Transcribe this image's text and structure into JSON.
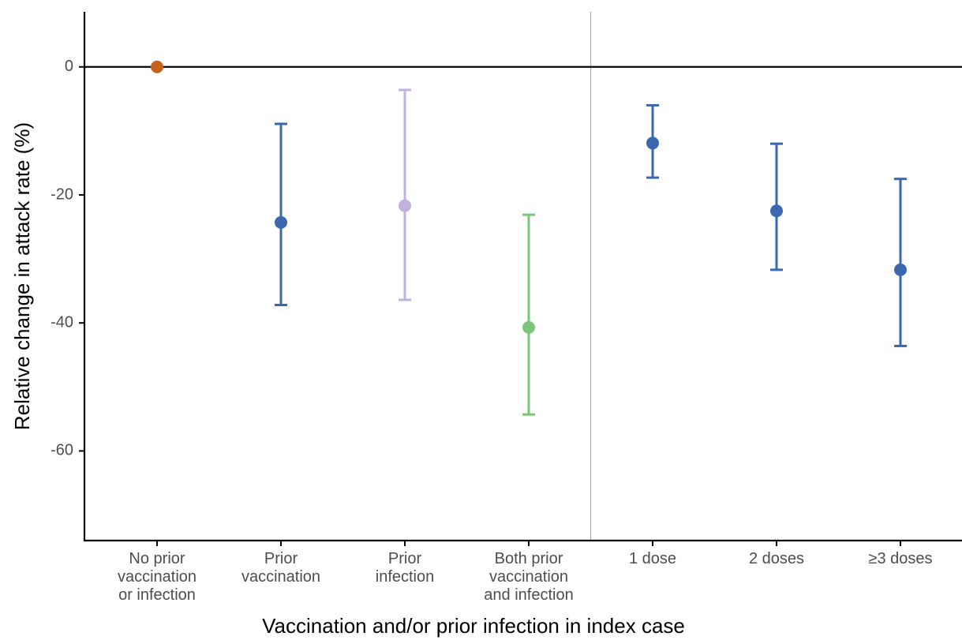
{
  "chart_data": {
    "type": "pointrange",
    "x_label": "Vaccination and/or prior infection in index case",
    "y_label": "Relative change in attack rate (%)",
    "categories": [
      "No prior\nvaccination\nor infection",
      "Prior\nvaccination",
      "Prior\ninfection",
      "Both prior\nvaccination\nand infection",
      "1 dose",
      "2 doses",
      "≥3 doses"
    ],
    "values": [
      0,
      -24.3,
      -21.7,
      -40.7,
      -11.9,
      -22.5,
      -31.7
    ],
    "lower": [
      null,
      -37.2,
      -36.4,
      -54.3,
      -17.3,
      -31.7,
      -43.6
    ],
    "upper": [
      null,
      -8.9,
      -3.6,
      -23.1,
      -6.0,
      -12.0,
      -17.5
    ],
    "colors": [
      "#c8611c",
      "#3a67ad",
      "#c3b1dd",
      "#7cc67c",
      "#3a67ad",
      "#3a67ad",
      "#3a67ad"
    ],
    "ylim": [
      -74,
      8.6
    ],
    "yticks": [
      0,
      -20,
      -40,
      -60
    ],
    "hline": 0
  }
}
